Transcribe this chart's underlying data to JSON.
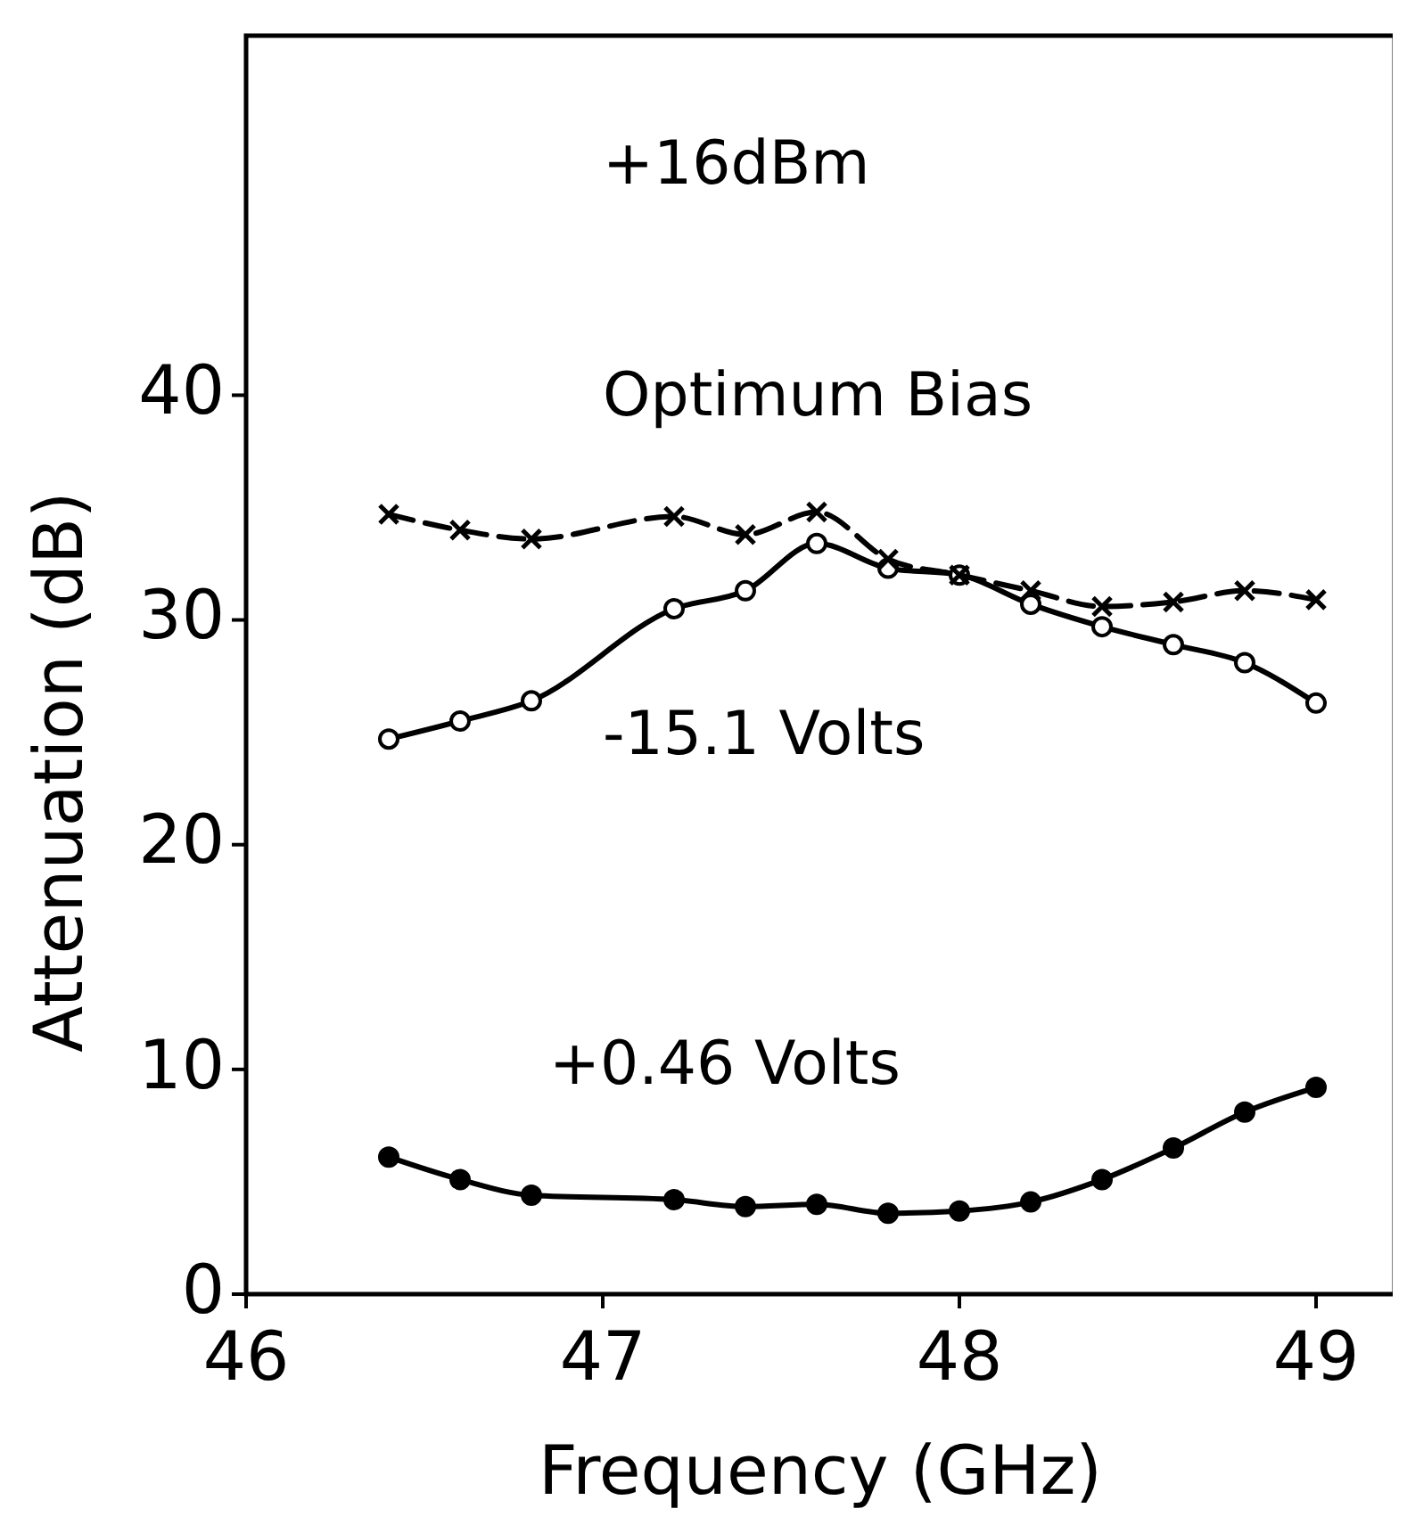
{
  "chart_data": {
    "type": "line",
    "xlabel": "Frequency (GHz)",
    "ylabel": "Attenuation (dB)",
    "annotations": [
      "+16dBm"
    ],
    "xlim": [
      46,
      49.22
    ],
    "xticks": [
      46,
      47,
      48,
      49
    ],
    "ylim": [
      0,
      56
    ],
    "yticks": [
      0,
      10,
      20,
      30,
      40
    ],
    "grid": false,
    "series": [
      {
        "name": "Optimum Bias",
        "color": "#000000",
        "marker": "cross",
        "line_style": "dashed",
        "x": [
          46.4,
          46.6,
          46.8,
          47.2,
          47.4,
          47.6,
          47.8,
          48.0,
          48.2,
          48.4,
          48.6,
          48.8,
          49.0
        ],
        "values": [
          34.7,
          34.0,
          33.6,
          34.6,
          33.8,
          34.8,
          32.7,
          32.0,
          31.3,
          30.6,
          30.8,
          31.3,
          30.9
        ]
      },
      {
        "name": "-15.1 Volts",
        "color": "#000000",
        "marker": "circle",
        "line_style": "solid",
        "x": [
          46.4,
          46.6,
          46.8,
          47.2,
          47.4,
          47.6,
          47.8,
          48.0,
          48.2,
          48.4,
          48.6,
          48.8,
          49.0
        ],
        "values": [
          24.7,
          25.5,
          26.4,
          30.5,
          31.3,
          33.4,
          32.3,
          32.0,
          30.7,
          29.7,
          28.9,
          28.1,
          26.3
        ]
      },
      {
        "name": "+0.46 Volts",
        "color": "#000000",
        "marker": "circle",
        "line_style": "solid",
        "x": [
          46.4,
          46.6,
          46.8,
          47.2,
          47.4,
          47.6,
          47.8,
          48.0,
          48.2,
          48.4,
          48.6,
          48.8,
          49.0
        ],
        "values": [
          6.1,
          5.1,
          4.4,
          4.2,
          3.9,
          4.0,
          3.6,
          3.7,
          4.1,
          5.1,
          6.5,
          8.1,
          9.2
        ]
      }
    ]
  }
}
